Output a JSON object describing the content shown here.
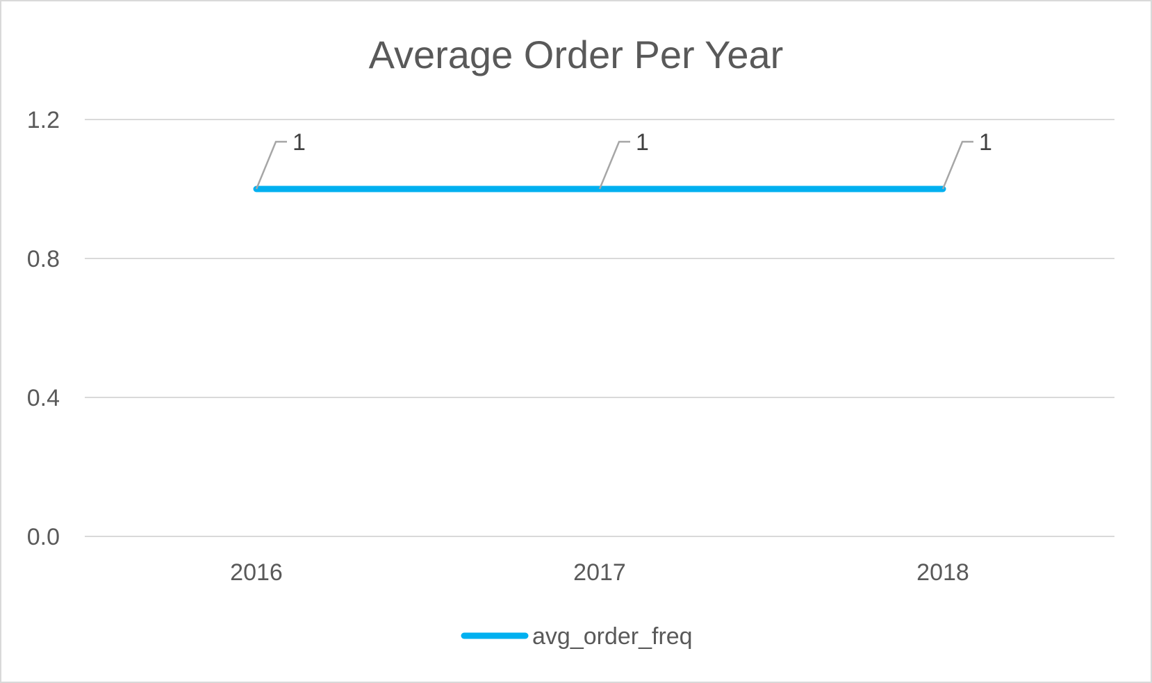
{
  "chart_data": {
    "type": "line",
    "title": "Average Order Per Year",
    "xlabel": "",
    "ylabel": "",
    "categories": [
      "2016",
      "2017",
      "2018"
    ],
    "series": [
      {
        "name": "avg_order_freq",
        "values": [
          1,
          1,
          1
        ],
        "color": "#00b0f0"
      }
    ],
    "data_labels": [
      "1",
      "1",
      "1"
    ],
    "ylim": [
      0,
      1.2
    ],
    "y_ticks": [
      0.0,
      0.4,
      0.8,
      1.2
    ],
    "y_tick_labels": [
      "0.0",
      "0.4",
      "0.8",
      "1.2"
    ],
    "grid": true,
    "legend_position": "bottom",
    "colors": {
      "gridline": "#d9d9d9",
      "text": "#595959",
      "leader_line": "#a6a6a6"
    }
  }
}
